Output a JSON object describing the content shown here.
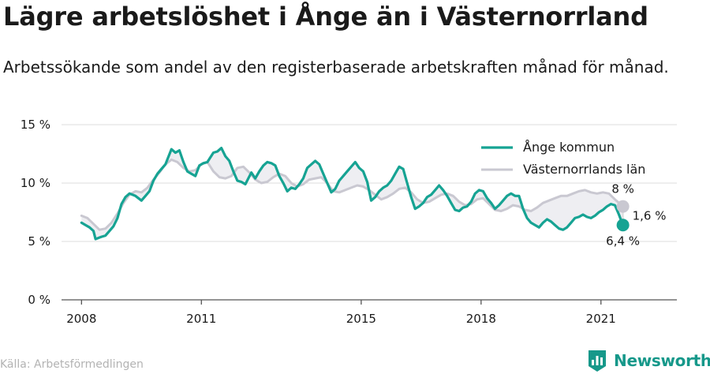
{
  "title": "Lägre arbetslöshet i Ånge än i Västernorrland",
  "subtitle": "Arbetssökande som andel av den registerbaserade arbetskraften månad för månad.",
  "source": "Källa: Arbetsförmedlingen",
  "brand": "Newsworthy",
  "colors": {
    "ange": "#16a393",
    "lan": "#c9c8d1",
    "fill": "#eeeef2",
    "brand": "#16988a"
  },
  "chart_data": {
    "type": "line",
    "title": "",
    "xlabel": "",
    "ylabel": "",
    "ylim": [
      0,
      15
    ],
    "xlim": [
      2007.5,
      2022.9
    ],
    "yticks": [
      0,
      5,
      10,
      15
    ],
    "ytick_labels": [
      "0 %",
      "5 %",
      "10 %",
      "15 %"
    ],
    "xticks": [
      2008,
      2011,
      2015,
      2018,
      2021
    ],
    "xtick_labels": [
      "2008",
      "2011",
      "2015",
      "2018",
      "2021"
    ],
    "grid": true,
    "legend": "top-right",
    "annotations": {
      "ange_end": "6,4 %",
      "lan_end": "8 %",
      "difference": "1,6 %"
    },
    "series": [
      {
        "name": "Ånge kommun",
        "x": [
          2008.0,
          2008.1,
          2008.2,
          2008.3,
          2008.35,
          2008.5,
          2008.6,
          2008.7,
          2008.8,
          2008.9,
          2009.0,
          2009.1,
          2009.2,
          2009.35,
          2009.5,
          2009.6,
          2009.7,
          2009.8,
          2009.9,
          2010.0,
          2010.1,
          2010.25,
          2010.35,
          2010.45,
          2010.55,
          2010.65,
          2010.75,
          2010.85,
          2010.95,
          2011.05,
          2011.15,
          2011.3,
          2011.4,
          2011.5,
          2011.6,
          2011.7,
          2011.8,
          2011.9,
          2012.0,
          2012.1,
          2012.25,
          2012.35,
          2012.45,
          2012.55,
          2012.65,
          2012.75,
          2012.85,
          2012.95,
          2013.05,
          2013.15,
          2013.25,
          2013.35,
          2013.45,
          2013.55,
          2013.65,
          2013.75,
          2013.85,
          2013.95,
          2014.05,
          2014.15,
          2014.25,
          2014.35,
          2014.45,
          2014.55,
          2014.65,
          2014.75,
          2014.85,
          2014.95,
          2015.05,
          2015.15,
          2015.25,
          2015.35,
          2015.45,
          2015.55,
          2015.65,
          2015.75,
          2015.85,
          2015.95,
          2016.05,
          2016.15,
          2016.25,
          2016.35,
          2016.45,
          2016.55,
          2016.65,
          2016.75,
          2016.85,
          2016.95,
          2017.05,
          2017.15,
          2017.25,
          2017.35,
          2017.45,
          2017.55,
          2017.65,
          2017.75,
          2017.85,
          2017.95,
          2018.05,
          2018.15,
          2018.25,
          2018.35,
          2018.45,
          2018.55,
          2018.65,
          2018.75,
          2018.85,
          2018.95,
          2019.05,
          2019.15,
          2019.25,
          2019.35,
          2019.45,
          2019.55,
          2019.65,
          2019.75,
          2019.85,
          2019.95,
          2020.05,
          2020.15,
          2020.25,
          2020.35,
          2020.45,
          2020.55,
          2020.65,
          2020.75,
          2020.85,
          2020.95,
          2021.05,
          2021.15,
          2021.25,
          2021.35,
          2021.45,
          2021.55
        ],
        "y": [
          6.6,
          6.4,
          6.2,
          5.9,
          5.2,
          5.4,
          5.5,
          5.9,
          6.3,
          7.0,
          8.2,
          8.8,
          9.1,
          8.9,
          8.5,
          8.9,
          9.3,
          10.2,
          10.8,
          11.2,
          11.6,
          12.9,
          12.6,
          12.8,
          11.8,
          11.0,
          10.8,
          10.6,
          11.5,
          11.7,
          11.8,
          12.6,
          12.7,
          13.0,
          12.3,
          11.9,
          11.0,
          10.2,
          10.1,
          9.9,
          10.9,
          10.4,
          11.0,
          11.5,
          11.8,
          11.7,
          11.5,
          10.6,
          10.0,
          9.3,
          9.6,
          9.5,
          9.9,
          10.4,
          11.3,
          11.6,
          11.9,
          11.6,
          10.8,
          10.0,
          9.2,
          9.5,
          10.2,
          10.6,
          11.0,
          11.4,
          11.8,
          11.3,
          11.0,
          10.1,
          8.5,
          8.8,
          9.3,
          9.6,
          9.8,
          10.2,
          10.8,
          11.4,
          11.2,
          10.0,
          8.8,
          7.8,
          8.0,
          8.3,
          8.8,
          9.0,
          9.4,
          9.8,
          9.4,
          8.9,
          8.3,
          7.7,
          7.6,
          7.9,
          8.0,
          8.4,
          9.1,
          9.4,
          9.3,
          8.7,
          8.3,
          7.8,
          8.1,
          8.5,
          8.9,
          9.1,
          8.9,
          8.9,
          7.8,
          7.0,
          6.6,
          6.4,
          6.2,
          6.6,
          6.9,
          6.7,
          6.4,
          6.1,
          6.0,
          6.2,
          6.6,
          7.0,
          7.1,
          7.3,
          7.1,
          7.0,
          7.2,
          7.5,
          7.7,
          8.0,
          8.2,
          8.1,
          7.3,
          6.4
        ]
      },
      {
        "name": "Västernorrlands län",
        "x": [
          2008.0,
          2008.15,
          2008.3,
          2008.45,
          2008.6,
          2008.75,
          2008.9,
          2009.05,
          2009.2,
          2009.35,
          2009.5,
          2009.65,
          2009.8,
          2009.95,
          2010.1,
          2010.25,
          2010.4,
          2010.55,
          2010.7,
          2010.85,
          2011.0,
          2011.15,
          2011.3,
          2011.45,
          2011.6,
          2011.75,
          2011.9,
          2012.05,
          2012.2,
          2012.35,
          2012.5,
          2012.65,
          2012.8,
          2012.95,
          2013.1,
          2013.25,
          2013.4,
          2013.55,
          2013.7,
          2013.85,
          2014.0,
          2014.15,
          2014.3,
          2014.45,
          2014.6,
          2014.75,
          2014.9,
          2015.05,
          2015.2,
          2015.35,
          2015.5,
          2015.65,
          2015.8,
          2015.95,
          2016.1,
          2016.25,
          2016.4,
          2016.55,
          2016.7,
          2016.85,
          2017.0,
          2017.15,
          2017.3,
          2017.45,
          2017.6,
          2017.75,
          2017.9,
          2018.05,
          2018.2,
          2018.35,
          2018.5,
          2018.65,
          2018.8,
          2018.95,
          2019.1,
          2019.25,
          2019.4,
          2019.55,
          2019.7,
          2019.85,
          2020.0,
          2020.15,
          2020.3,
          2020.45,
          2020.6,
          2020.75,
          2020.9,
          2021.05,
          2021.2,
          2021.35,
          2021.55
        ],
        "y": [
          7.2,
          7.0,
          6.5,
          6.0,
          6.1,
          6.6,
          7.4,
          8.3,
          9.0,
          9.3,
          9.2,
          9.6,
          10.3,
          10.9,
          11.6,
          12.0,
          11.8,
          11.3,
          11.0,
          11.1,
          11.6,
          11.8,
          11.0,
          10.5,
          10.4,
          10.6,
          11.3,
          11.4,
          10.9,
          10.3,
          10.0,
          10.1,
          10.5,
          10.8,
          10.6,
          10.0,
          9.7,
          9.9,
          10.3,
          10.4,
          10.5,
          10.0,
          9.3,
          9.2,
          9.4,
          9.6,
          9.8,
          9.7,
          9.4,
          9.0,
          8.6,
          8.8,
          9.1,
          9.5,
          9.6,
          9.2,
          8.6,
          8.3,
          8.4,
          8.7,
          9.0,
          9.1,
          8.9,
          8.4,
          8.1,
          8.2,
          8.6,
          8.7,
          8.2,
          7.7,
          7.6,
          7.8,
          8.1,
          8.0,
          7.7,
          7.6,
          7.9,
          8.3,
          8.5,
          8.7,
          8.9,
          8.9,
          9.1,
          9.3,
          9.4,
          9.2,
          9.1,
          9.2,
          9.1,
          8.6,
          8.0
        ]
      }
    ]
  }
}
